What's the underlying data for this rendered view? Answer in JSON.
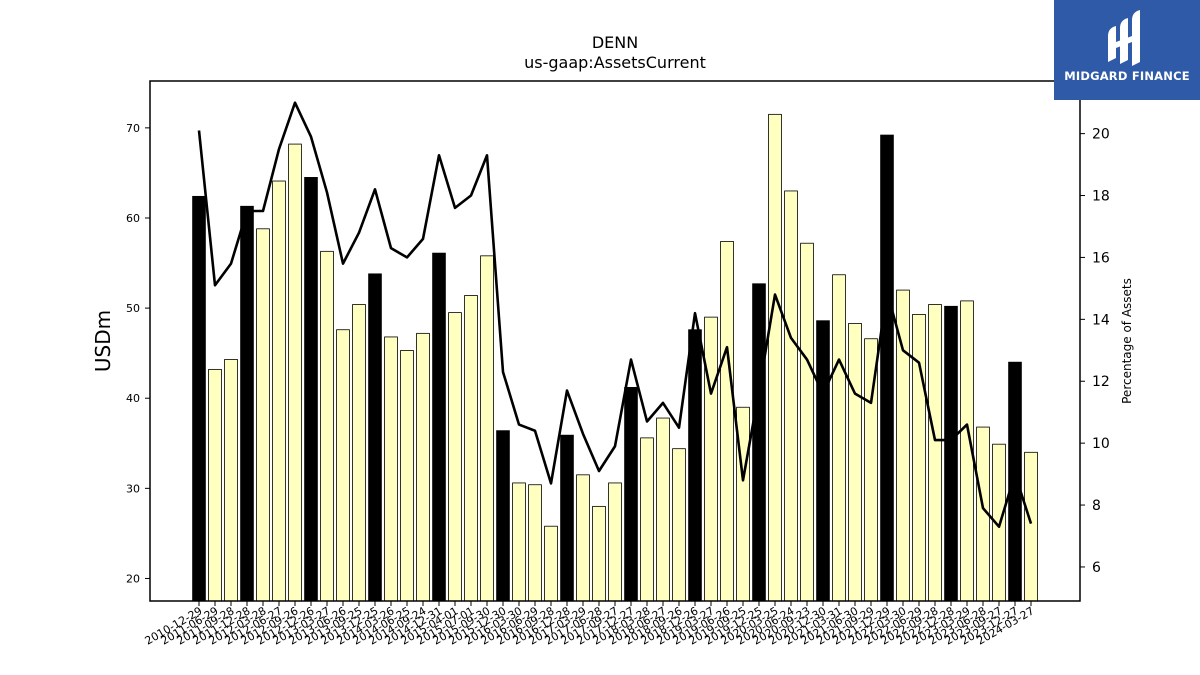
{
  "chart_data": {
    "type": "bar",
    "title": "DENN",
    "subtitle": "us-gaap:AssetsCurrent",
    "ylabel": "USDm",
    "y2label": "Percentage of Assets",
    "ylim": [
      17.5,
      75.2
    ],
    "y2lim": [
      4.9,
      21.7
    ],
    "yticks": [
      20,
      30,
      40,
      50,
      60,
      70
    ],
    "y2ticks": [
      6,
      8,
      10,
      12,
      14,
      16,
      18,
      20
    ],
    "categories": [
      "2010-12-29",
      "2011-06-29",
      "2011-09-28",
      "2011-12-28",
      "2012-03-28",
      "2012-06-27",
      "2012-09-26",
      "2012-12-26",
      "2013-03-27",
      "2013-06-26",
      "2013-09-25",
      "2013-12-25",
      "2014-03-26",
      "2014-06-25",
      "2014-09-24",
      "2014-12-31",
      "2015-04-01",
      "2015-07-01",
      "2015-09-30",
      "2015-12-30",
      "2016-03-30",
      "2016-06-29",
      "2016-09-28",
      "2016-12-28",
      "2017-03-29",
      "2017-06-28",
      "2017-09-27",
      "2017-12-27",
      "2018-03-28",
      "2018-06-27",
      "2018-09-26",
      "2018-12-26",
      "2019-03-27",
      "2019-06-26",
      "2019-09-25",
      "2019-12-25",
      "2020-03-25",
      "2020-06-24",
      "2020-09-23",
      "2020-12-30",
      "2021-03-31",
      "2021-06-30",
      "2021-09-29",
      "2021-12-29",
      "2022-03-30",
      "2022-06-29",
      "2022-09-28",
      "2022-12-28",
      "2023-03-29",
      "2023-06-28",
      "2023-09-27",
      "2023-12-27",
      "2024-03-27"
    ],
    "series": [
      {
        "type": "bar",
        "values": [
          62.4,
          43.2,
          44.3,
          61.3,
          58.8,
          64.1,
          68.2,
          64.5,
          56.3,
          47.6,
          50.4,
          53.8,
          46.8,
          45.3,
          47.2,
          56.1,
          49.5,
          51.4,
          55.8,
          36.4,
          30.6,
          30.4,
          25.8,
          35.9,
          31.5,
          28.0,
          30.6,
          41.2,
          35.6,
          37.8,
          34.4,
          47.6,
          49.0,
          57.4,
          39.0,
          52.7,
          71.5,
          63.0,
          57.2,
          48.6,
          53.7,
          48.3,
          46.6,
          69.2,
          52.0,
          49.3,
          50.4,
          50.2,
          50.8,
          36.8,
          34.9,
          44.0,
          34.0
        ],
        "highlight": [
          true,
          false,
          false,
          true,
          false,
          false,
          false,
          true,
          false,
          false,
          false,
          true,
          false,
          false,
          false,
          true,
          false,
          false,
          false,
          true,
          false,
          false,
          false,
          true,
          false,
          false,
          false,
          true,
          false,
          false,
          false,
          true,
          false,
          false,
          false,
          true,
          false,
          false,
          false,
          true,
          false,
          false,
          false,
          true,
          false,
          false,
          false,
          true,
          false,
          false,
          false,
          true,
          false
        ],
        "color_highlight": "#000000",
        "color_normal": "#ffffc0"
      },
      {
        "type": "line",
        "axis": "right",
        "color": "#000000",
        "values": [
          20.1,
          15.1,
          15.8,
          17.5,
          17.5,
          19.5,
          21.0,
          19.9,
          18.1,
          15.8,
          16.8,
          18.2,
          16.3,
          16.0,
          16.6,
          19.3,
          17.6,
          18.0,
          19.3,
          12.3,
          10.6,
          10.4,
          8.7,
          11.7,
          10.3,
          9.1,
          9.9,
          12.7,
          10.7,
          11.3,
          10.5,
          14.2,
          11.6,
          13.1,
          8.8,
          11.7,
          14.8,
          13.4,
          12.7,
          11.6,
          12.7,
          11.6,
          11.3,
          14.9,
          13.0,
          12.6,
          10.1,
          10.1,
          10.6,
          7.9,
          7.3,
          9.0,
          7.4
        ]
      }
    ]
  },
  "logo": {
    "text": "MIDGARD FINANCE",
    "bg": "#2f5aa8"
  }
}
